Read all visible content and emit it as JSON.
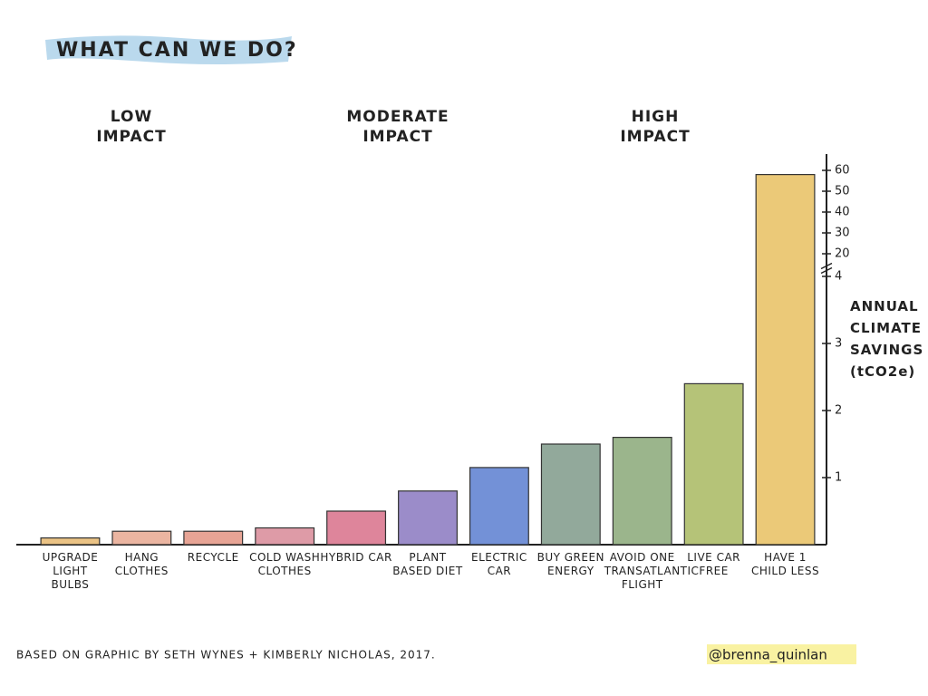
{
  "chart_data": {
    "type": "bar",
    "title": "WHAT CAN WE DO?",
    "annotations": [
      "LOW IMPACT",
      "MODERATE IMPACT",
      "HIGH IMPACT"
    ],
    "ylabel": "ANNUAL CLIMATE SAVINGS (tCO2e)",
    "categories": [
      "UPGRADE LIGHT BULBS",
      "HANG CLOTHES",
      "RECYCLE",
      "COLD WASH CLOTHES",
      "HYBRID CAR",
      "PLANT BASED DIET",
      "ELECTRIC CAR",
      "BUY GREEN ENERGY",
      "AVOID ONE TRANSATLANTIC FLIGHT",
      "LIVE CAR FREE",
      "HAVE 1 CHILD LESS"
    ],
    "values": [
      0.1,
      0.2,
      0.2,
      0.25,
      0.5,
      0.8,
      1.15,
      1.5,
      1.6,
      2.4,
      58
    ],
    "colors": [
      "#e8b870",
      "#e8a890",
      "#e39482",
      "#d88a98",
      "#d8708a",
      "#8a78c0",
      "#5a7ed0",
      "#7f9a8a",
      "#8aa878",
      "#a8b860",
      "#e8c060"
    ],
    "ylim": [
      0,
      60
    ],
    "axis_break": [
      4,
      20
    ],
    "yticks": [
      1,
      2,
      3,
      4,
      20,
      30,
      40,
      50,
      60
    ],
    "footnote": "BASED ON GRAPHIC BY SETH WYNES + KIMBERLY NICHOLAS, 2017.",
    "credit": "@brenna_quinlan"
  }
}
